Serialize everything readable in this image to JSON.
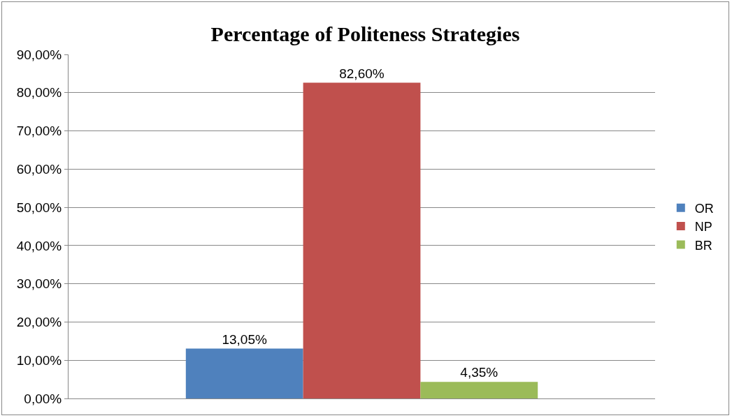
{
  "chart_data": {
    "type": "bar",
    "title": "Percentage of Politeness Strategies",
    "categories": [
      null
    ],
    "series": [
      {
        "name": "OR",
        "color": "#4f81bd",
        "values": [
          13.05
        ],
        "value_labels": [
          "13,05%"
        ]
      },
      {
        "name": "NP",
        "color": "#c0504d",
        "values": [
          82.6
        ],
        "value_labels": [
          "82,60%"
        ]
      },
      {
        "name": "BR",
        "color": "#9bbb59",
        "values": [
          4.35
        ],
        "value_labels": [
          "4,35%"
        ]
      }
    ],
    "ylim": [
      0,
      90
    ],
    "yticks": [
      {
        "value": 0,
        "label": "0,00%"
      },
      {
        "value": 10,
        "label": "10,00%"
      },
      {
        "value": 20,
        "label": "20,00%"
      },
      {
        "value": 30,
        "label": "30,00%"
      },
      {
        "value": 40,
        "label": "40,00%"
      },
      {
        "value": 50,
        "label": "50,00%"
      },
      {
        "value": 60,
        "label": "60,00%"
      },
      {
        "value": 70,
        "label": "70,00%"
      },
      {
        "value": 80,
        "label": "80,00%"
      },
      {
        "value": 90,
        "label": "90,00%"
      }
    ],
    "grid": "y",
    "legend": "right"
  }
}
